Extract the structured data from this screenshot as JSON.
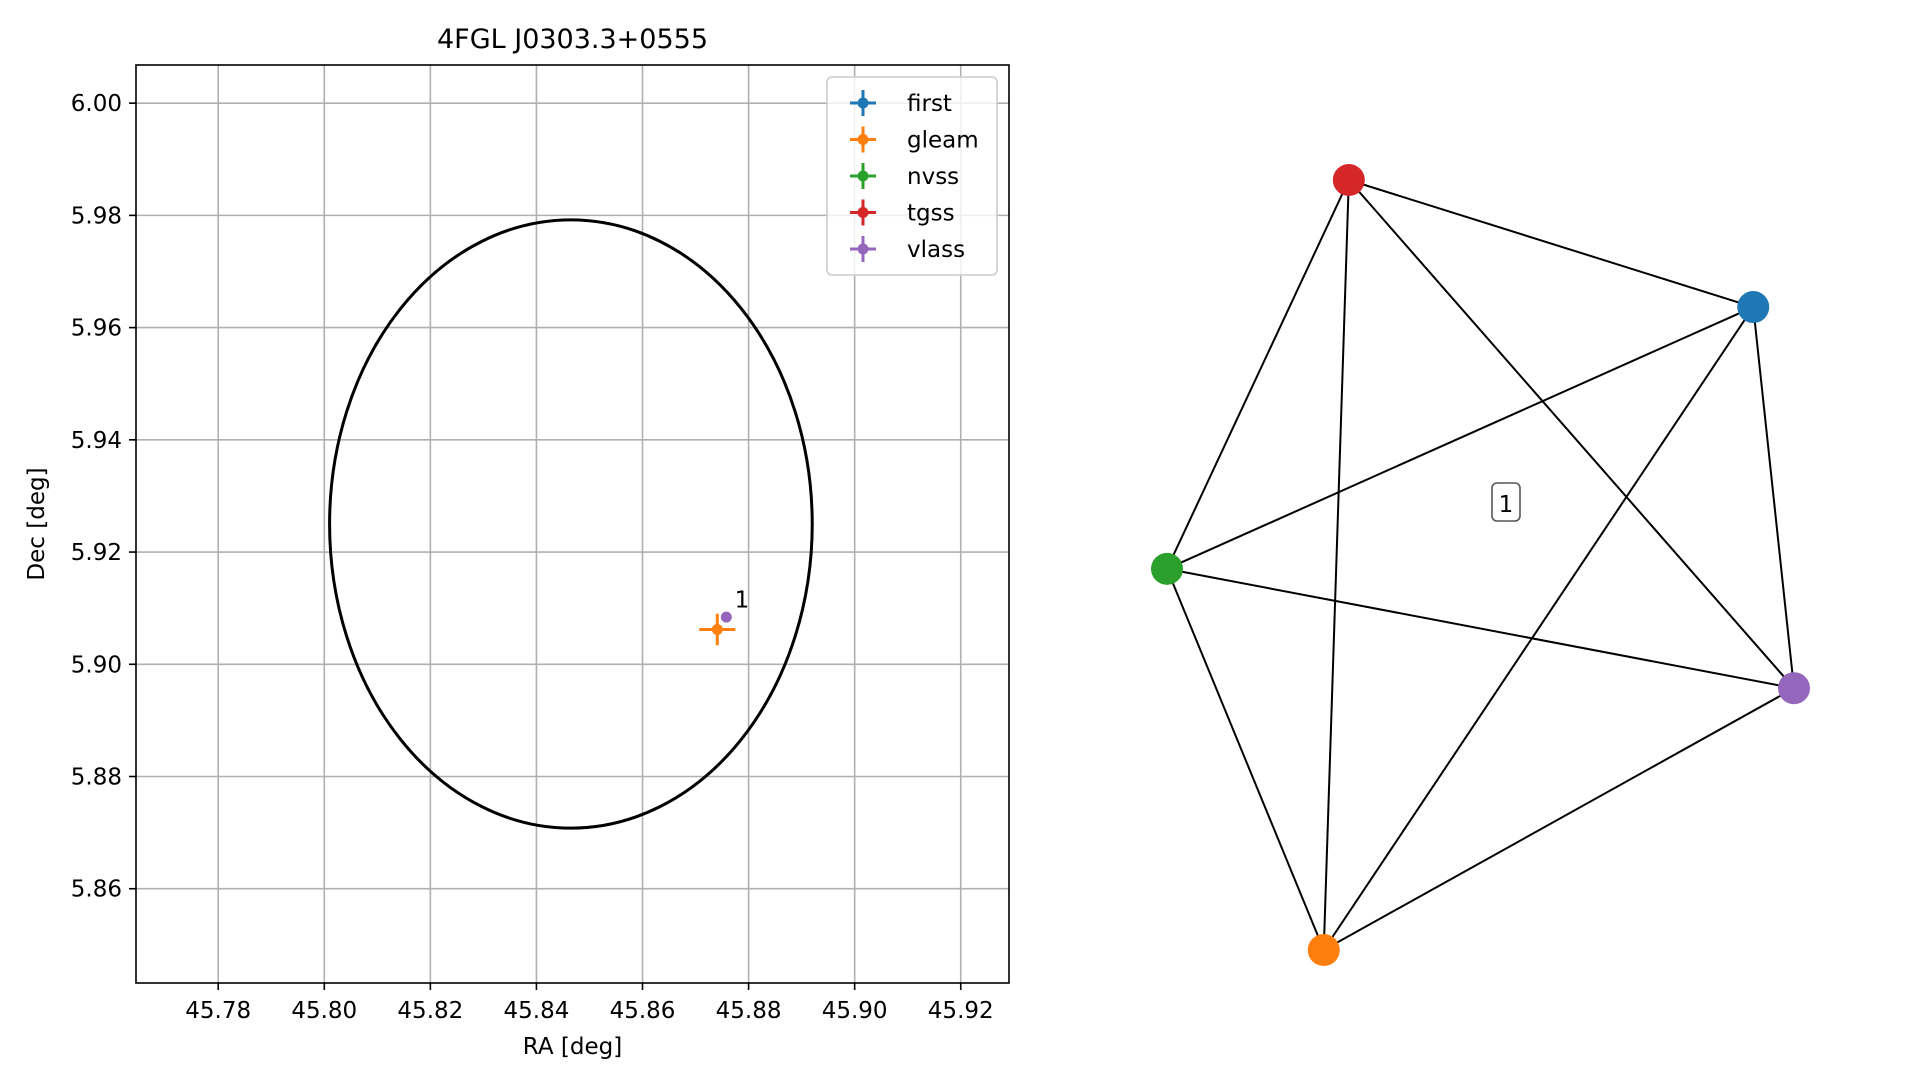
{
  "chart_data": [
    {
      "type": "scatter",
      "title": "4FGL J0303.3+0555",
      "xlabel": "RA [deg]",
      "ylabel": "Dec [deg]",
      "xlim": [
        45.7645,
        45.9291
      ],
      "ylim": [
        5.8432,
        6.0068
      ],
      "xticks": [
        45.78,
        45.8,
        45.82,
        45.84,
        45.86,
        45.88,
        45.9,
        45.92
      ],
      "yticks": [
        5.86,
        5.88,
        5.9,
        5.92,
        5.94,
        5.96,
        5.98,
        6.0
      ],
      "xtick_labels": [
        "45.78",
        "45.80",
        "45.82",
        "45.84",
        "45.86",
        "45.88",
        "45.90",
        "45.92"
      ],
      "ytick_labels": [
        "5.86",
        "5.88",
        "5.90",
        "5.92",
        "5.94",
        "5.96",
        "5.98",
        "6.00"
      ],
      "grid": true,
      "legend_position": "top-right",
      "ellipse": {
        "center": [
          45.8465,
          5.925
        ],
        "semi_axis_ra": 0.0455,
        "semi_axis_dec": 0.0542,
        "color": "#000000"
      },
      "series": [
        {
          "name": "first",
          "color": "#1f77b4",
          "points": []
        },
        {
          "name": "gleam",
          "color": "#ff7f0e",
          "points": [
            {
              "ra": 45.8741,
              "dec": 5.9062,
              "ra_err": 0.0034,
              "dec_err": 0.0028
            }
          ]
        },
        {
          "name": "nvss",
          "color": "#2ca02c",
          "points": []
        },
        {
          "name": "tgss",
          "color": "#d62728",
          "points": []
        },
        {
          "name": "vlass",
          "color": "#9467bd",
          "points": [
            {
              "ra": 45.8758,
              "dec": 5.9084,
              "ra_err": 0.0002,
              "dec_err": 0.0002
            }
          ]
        }
      ],
      "annotations": [
        {
          "text": "1",
          "ra": 45.877,
          "dec": 5.9105
        }
      ]
    },
    {
      "type": "network",
      "label": "1",
      "nodes": [
        {
          "id": "first",
          "color": "#1f77b4",
          "x": 0.935,
          "y": 0.835
        },
        {
          "id": "gleam",
          "color": "#ff7f0e",
          "x": 0.25,
          "y": 0.0
        },
        {
          "id": "nvss",
          "color": "#2ca02c",
          "x": 0.0,
          "y": 0.495
        },
        {
          "id": "tgss",
          "color": "#d62728",
          "x": 0.29,
          "y": 1.0
        },
        {
          "id": "vlass",
          "color": "#9467bd",
          "x": 1.0,
          "y": 0.34
        }
      ],
      "edges": [
        [
          "tgss",
          "first"
        ],
        [
          "tgss",
          "nvss"
        ],
        [
          "tgss",
          "gleam"
        ],
        [
          "tgss",
          "vlass"
        ],
        [
          "first",
          "nvss"
        ],
        [
          "first",
          "gleam"
        ],
        [
          "first",
          "vlass"
        ],
        [
          "nvss",
          "vlass"
        ],
        [
          "nvss",
          "gleam"
        ],
        [
          "gleam",
          "vlass"
        ]
      ]
    }
  ]
}
